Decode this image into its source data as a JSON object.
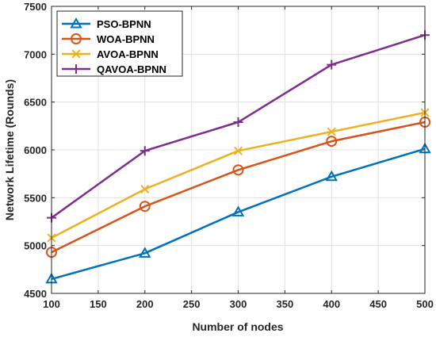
{
  "chart_data": {
    "type": "line",
    "xlabel": "Number of nodes",
    "ylabel": "Network Lifetime (Rounds)",
    "xlim": [
      100,
      500
    ],
    "ylim": [
      4500,
      7500
    ],
    "xticks": [
      100,
      150,
      200,
      250,
      300,
      350,
      400,
      450,
      500
    ],
    "yticks": [
      4500,
      5000,
      5500,
      6000,
      6500,
      7000,
      7500
    ],
    "grid": true,
    "legend_position": "top-left",
    "x": [
      100,
      200,
      300,
      400,
      500
    ],
    "series": [
      {
        "name": "PSO-BPNN",
        "color": "#0072BD",
        "marker": "triangle",
        "values": [
          4650,
          4920,
          5350,
          5720,
          6010
        ]
      },
      {
        "name": "WOA-BPNN",
        "color": "#D95319",
        "marker": "circle",
        "values": [
          4930,
          5410,
          5790,
          6090,
          6290
        ]
      },
      {
        "name": "AVOA-BPNN",
        "color": "#EDB120",
        "marker": "x",
        "values": [
          5080,
          5590,
          5990,
          6190,
          6390
        ]
      },
      {
        "name": "QAVOA-BPNN",
        "color": "#7E2F8E",
        "marker": "plus",
        "values": [
          5290,
          5990,
          6290,
          6890,
          7200
        ]
      }
    ]
  }
}
